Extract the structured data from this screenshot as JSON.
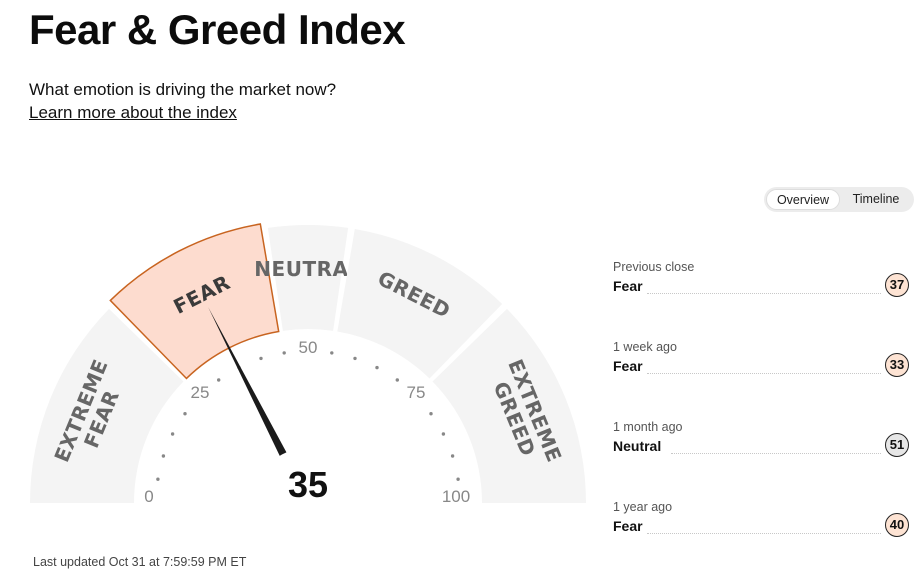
{
  "page": {
    "title": "Fear & Greed Index",
    "subtitle": "What emotion is driving the market now?",
    "learn_more": "Learn more about the index",
    "last_updated": "Last updated Oct 31 at 7:59:59 PM ET"
  },
  "toggle": {
    "overview": "Overview",
    "timeline": "Timeline",
    "selected": "Overview"
  },
  "gauge": {
    "score": 35,
    "active_segment": "FEAR",
    "segments": [
      {
        "line1": "EXTREME",
        "line2": "FEAR"
      },
      {
        "line1": "FEAR",
        "line2": ""
      },
      {
        "line1": "NEUTRAL",
        "line2": ""
      },
      {
        "line1": "GREED",
        "line2": ""
      },
      {
        "line1": "EXTREME",
        "line2": "GREED"
      }
    ],
    "scale_labels": [
      "0",
      "25",
      "50",
      "75",
      "100"
    ],
    "colors": {
      "segment": "#f4f4f4",
      "active_fill": "#fddccf",
      "active_border": "#c86420",
      "needle": "#1b1b1b"
    }
  },
  "history": [
    {
      "period": "Previous close",
      "rating": "Fear",
      "value": "37",
      "badge_color": "#fde3d3"
    },
    {
      "period": "1 week ago",
      "rating": "Fear",
      "value": "33",
      "badge_color": "#fde3d3"
    },
    {
      "period": "1 month ago",
      "rating": "Neutral",
      "value": "51",
      "badge_color": "#e6e6e6"
    },
    {
      "period": "1 year ago",
      "rating": "Fear",
      "value": "40",
      "badge_color": "#fde3d3"
    }
  ]
}
